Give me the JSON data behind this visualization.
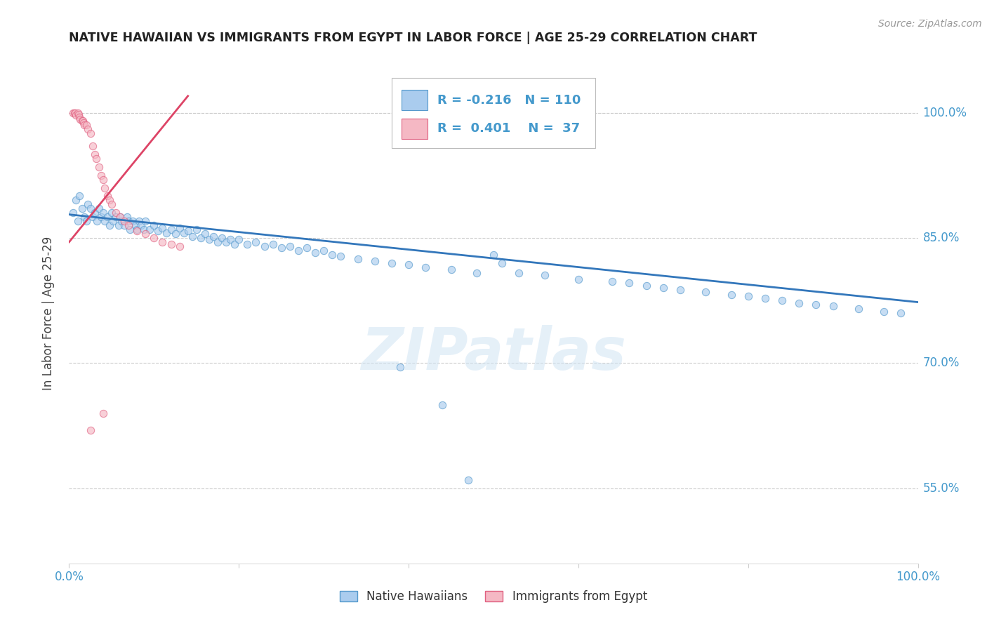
{
  "title": "NATIVE HAWAIIAN VS IMMIGRANTS FROM EGYPT IN LABOR FORCE | AGE 25-29 CORRELATION CHART",
  "source": "Source: ZipAtlas.com",
  "ylabel": "In Labor Force | Age 25-29",
  "xlim": [
    0.0,
    1.0
  ],
  "ylim": [
    0.46,
    1.06
  ],
  "ytick_labels_right": [
    "100.0%",
    "85.0%",
    "70.0%",
    "55.0%"
  ],
  "ytick_vals_right": [
    1.0,
    0.85,
    0.7,
    0.55
  ],
  "grid_color": "#cccccc",
  "background_color": "#ffffff",
  "watermark_text": "ZIPatlas",
  "legend_R_blue": "-0.216",
  "legend_N_blue": "110",
  "legend_R_pink": "0.401",
  "legend_N_pink": "37",
  "blue_fill": "#aaccee",
  "blue_edge": "#5599cc",
  "pink_fill": "#f5b8c4",
  "pink_edge": "#e06080",
  "blue_line_color": "#3377bb",
  "pink_line_color": "#dd4466",
  "title_color": "#222222",
  "ylabel_color": "#444444",
  "right_tick_color": "#4499cc",
  "scatter_alpha": 0.65,
  "scatter_size": 55,
  "blue_x": [
    0.005,
    0.008,
    0.01,
    0.012,
    0.015,
    0.018,
    0.02,
    0.022,
    0.025,
    0.028,
    0.03,
    0.033,
    0.035,
    0.038,
    0.04,
    0.042,
    0.045,
    0.048,
    0.05,
    0.052,
    0.055,
    0.058,
    0.06,
    0.062,
    0.065,
    0.068,
    0.07,
    0.072,
    0.075,
    0.078,
    0.08,
    0.082,
    0.085,
    0.088,
    0.09,
    0.095,
    0.1,
    0.105,
    0.11,
    0.115,
    0.12,
    0.125,
    0.13,
    0.135,
    0.14,
    0.145,
    0.15,
    0.155,
    0.16,
    0.165,
    0.17,
    0.175,
    0.18,
    0.185,
    0.19,
    0.195,
    0.2,
    0.21,
    0.22,
    0.23,
    0.24,
    0.25,
    0.26,
    0.27,
    0.28,
    0.29,
    0.3,
    0.31,
    0.32,
    0.34,
    0.36,
    0.38,
    0.4,
    0.42,
    0.45,
    0.48,
    0.5,
    0.51,
    0.53,
    0.56,
    0.6,
    0.64,
    0.66,
    0.68,
    0.7,
    0.72,
    0.75,
    0.78,
    0.8,
    0.82,
    0.84,
    0.86,
    0.88,
    0.9,
    0.93,
    0.96,
    0.98,
    0.39,
    0.44,
    0.47
  ],
  "blue_y": [
    0.88,
    0.895,
    0.87,
    0.9,
    0.885,
    0.875,
    0.87,
    0.89,
    0.885,
    0.875,
    0.88,
    0.87,
    0.885,
    0.875,
    0.88,
    0.87,
    0.875,
    0.865,
    0.88,
    0.87,
    0.875,
    0.865,
    0.875,
    0.87,
    0.865,
    0.875,
    0.87,
    0.86,
    0.87,
    0.865,
    0.86,
    0.87,
    0.865,
    0.86,
    0.87,
    0.86,
    0.865,
    0.858,
    0.862,
    0.856,
    0.86,
    0.855,
    0.862,
    0.856,
    0.858,
    0.852,
    0.86,
    0.85,
    0.855,
    0.848,
    0.852,
    0.845,
    0.85,
    0.845,
    0.848,
    0.842,
    0.848,
    0.842,
    0.845,
    0.84,
    0.842,
    0.838,
    0.84,
    0.835,
    0.838,
    0.832,
    0.835,
    0.83,
    0.828,
    0.825,
    0.822,
    0.82,
    0.818,
    0.815,
    0.812,
    0.808,
    0.83,
    0.82,
    0.808,
    0.805,
    0.8,
    0.798,
    0.796,
    0.793,
    0.79,
    0.788,
    0.785,
    0.782,
    0.78,
    0.778,
    0.775,
    0.772,
    0.77,
    0.768,
    0.765,
    0.762,
    0.76,
    0.695,
    0.65,
    0.56
  ],
  "pink_x": [
    0.005,
    0.006,
    0.007,
    0.008,
    0.01,
    0.011,
    0.012,
    0.013,
    0.015,
    0.016,
    0.017,
    0.018,
    0.02,
    0.022,
    0.025,
    0.028,
    0.03,
    0.032,
    0.035,
    0.038,
    0.04,
    0.042,
    0.045,
    0.048,
    0.05,
    0.055,
    0.06,
    0.065,
    0.07,
    0.08,
    0.09,
    0.1,
    0.11,
    0.12,
    0.13,
    0.04,
    0.025
  ],
  "pink_y": [
    1.0,
    1.0,
    1.0,
    0.997,
    1.0,
    0.998,
    0.995,
    0.992,
    0.99,
    0.99,
    0.988,
    0.985,
    0.985,
    0.98,
    0.975,
    0.96,
    0.95,
    0.945,
    0.935,
    0.925,
    0.92,
    0.91,
    0.9,
    0.895,
    0.89,
    0.88,
    0.875,
    0.87,
    0.865,
    0.858,
    0.855,
    0.85,
    0.845,
    0.842,
    0.84,
    0.64,
    0.62
  ],
  "blue_trend_x": [
    0.0,
    1.0
  ],
  "blue_trend_y": [
    0.878,
    0.773
  ],
  "pink_trend_x": [
    0.0,
    0.14
  ],
  "pink_trend_y": [
    0.845,
    1.02
  ]
}
